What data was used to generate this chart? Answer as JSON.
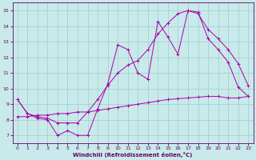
{
  "xlabel": "Windchill (Refroidissement éolien,°C)",
  "background_color": "#c8eaea",
  "grid_color": "#a0cccc",
  "line_color": "#aa00aa",
  "xlim": [
    -0.5,
    23.5
  ],
  "ylim": [
    6.5,
    15.5
  ],
  "xticks": [
    0,
    1,
    2,
    3,
    4,
    5,
    6,
    7,
    8,
    9,
    10,
    11,
    12,
    13,
    14,
    15,
    16,
    17,
    18,
    19,
    20,
    21,
    22,
    23
  ],
  "yticks": [
    7,
    8,
    9,
    10,
    11,
    12,
    13,
    14,
    15
  ],
  "line1_x": [
    0,
    1,
    2,
    3,
    4,
    5,
    6,
    7,
    8,
    9,
    10,
    11,
    12,
    13,
    14,
    15,
    16,
    17,
    18,
    19,
    20,
    21,
    22,
    23
  ],
  "line1_y": [
    9.3,
    8.4,
    8.1,
    8.0,
    7.0,
    7.3,
    7.0,
    7.0,
    8.7,
    10.3,
    12.8,
    12.5,
    11.0,
    10.6,
    14.3,
    13.3,
    12.2,
    15.0,
    14.9,
    13.2,
    12.5,
    11.7,
    10.1,
    9.5
  ],
  "line2_x": [
    0,
    1,
    2,
    3,
    4,
    5,
    6,
    7,
    8,
    9,
    10,
    11,
    12,
    13,
    14,
    15,
    16,
    17,
    18,
    19,
    20,
    21,
    22,
    23
  ],
  "line2_y": [
    9.3,
    8.4,
    8.2,
    8.1,
    7.8,
    7.8,
    7.8,
    8.5,
    9.3,
    10.2,
    11.0,
    11.5,
    11.8,
    12.5,
    13.5,
    14.2,
    14.8,
    15.0,
    14.8,
    13.8,
    13.2,
    12.5,
    11.6,
    10.2
  ],
  "line3_x": [
    0,
    1,
    2,
    3,
    4,
    5,
    6,
    7,
    8,
    9,
    10,
    11,
    12,
    13,
    14,
    15,
    16,
    17,
    18,
    19,
    20,
    21,
    22,
    23
  ],
  "line3_y": [
    8.2,
    8.2,
    8.3,
    8.3,
    8.4,
    8.4,
    8.5,
    8.5,
    8.6,
    8.7,
    8.8,
    8.9,
    9.0,
    9.1,
    9.2,
    9.3,
    9.35,
    9.4,
    9.45,
    9.5,
    9.5,
    9.4,
    9.4,
    9.5
  ]
}
